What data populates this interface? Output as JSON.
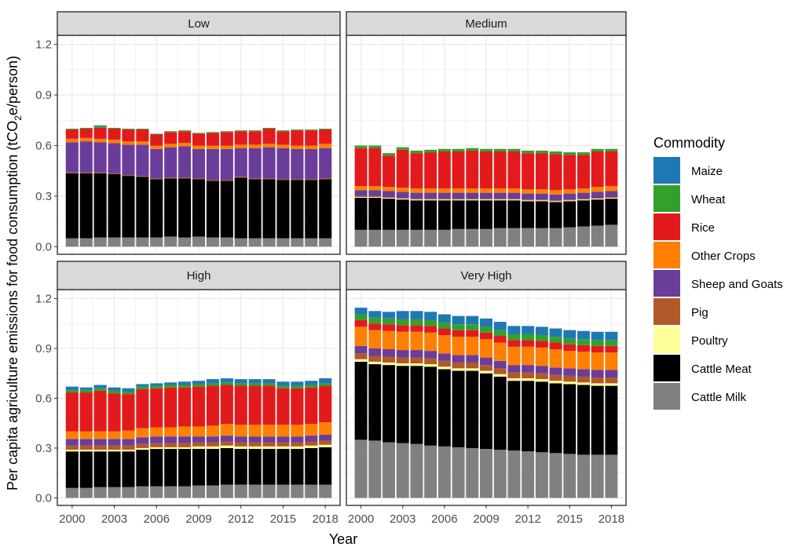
{
  "chart_data": {
    "type": "bar",
    "stacked": true,
    "facet_by": "income group",
    "xlabel": "Year",
    "ylabel": "Per capita agriculture emissions for food consumption (tCO",
    "ylabel_sub": "2",
    "ylabel_suffix": "e/person)",
    "ylim": [
      0,
      1.2
    ],
    "yticks": [
      "0.0",
      "0.3",
      "0.6",
      "0.9",
      "1.2"
    ],
    "ytick_values": [
      0,
      0.3,
      0.6,
      0.9,
      1.2
    ],
    "xticks": [
      "2000",
      "2003",
      "2006",
      "2009",
      "2012",
      "2015",
      "2018"
    ],
    "years": [
      2000,
      2001,
      2002,
      2003,
      2004,
      2005,
      2006,
      2007,
      2008,
      2009,
      2010,
      2011,
      2012,
      2013,
      2014,
      2015,
      2016,
      2017,
      2018
    ],
    "grid": true,
    "legend": {
      "title": "Commodity",
      "placement": "right",
      "items": [
        {
          "name": "Maize",
          "color": "#1f78b4"
        },
        {
          "name": "Wheat",
          "color": "#33a02c"
        },
        {
          "name": "Rice",
          "color": "#e31a1c"
        },
        {
          "name": "Other Crops",
          "color": "#ff7f00"
        },
        {
          "name": "Sheep and Goats",
          "color": "#6a3d9a"
        },
        {
          "name": "Pig",
          "color": "#b15928"
        },
        {
          "name": "Poultry",
          "color": "#ffff99"
        },
        {
          "name": "Cattle Meat",
          "color": "#000000"
        },
        {
          "name": "Cattle Milk",
          "color": "#808080"
        }
      ]
    },
    "stack_order": [
      "Cattle Milk",
      "Cattle Meat",
      "Poultry",
      "Pig",
      "Sheep and Goats",
      "Other Crops",
      "Rice",
      "Wheat",
      "Maize"
    ],
    "panels": [
      {
        "name": "Low",
        "series": [
          {
            "name": "Cattle Milk",
            "values": [
              0.05,
              0.05,
              0.055,
              0.055,
              0.055,
              0.055,
              0.055,
              0.06,
              0.055,
              0.06,
              0.055,
              0.055,
              0.05,
              0.05,
              0.05,
              0.05,
              0.05,
              0.05,
              0.05
            ]
          },
          {
            "name": "Cattle Meat",
            "values": [
              0.385,
              0.385,
              0.38,
              0.375,
              0.365,
              0.36,
              0.345,
              0.345,
              0.35,
              0.34,
              0.335,
              0.335,
              0.36,
              0.35,
              0.35,
              0.345,
              0.345,
              0.345,
              0.35
            ]
          },
          {
            "name": "Poultry",
            "values": [
              0,
              0,
              0,
              0,
              0,
              0,
              0,
              0,
              0,
              0,
              0,
              0,
              0,
              0,
              0,
              0,
              0,
              0,
              0
            ]
          },
          {
            "name": "Pig",
            "values": [
              0.005,
              0.005,
              0.005,
              0.005,
              0.005,
              0.005,
              0.005,
              0.005,
              0.005,
              0.005,
              0.005,
              0.005,
              0.005,
              0.005,
              0.005,
              0.005,
              0.005,
              0.005,
              0.005
            ]
          },
          {
            "name": "Sheep and Goats",
            "values": [
              0.18,
              0.185,
              0.18,
              0.18,
              0.18,
              0.185,
              0.175,
              0.18,
              0.185,
              0.175,
              0.185,
              0.185,
              0.17,
              0.18,
              0.185,
              0.185,
              0.18,
              0.18,
              0.18
            ]
          },
          {
            "name": "Other Crops",
            "values": [
              0.02,
              0.02,
              0.02,
              0.02,
              0.02,
              0.02,
              0.02,
              0.02,
              0.02,
              0.02,
              0.02,
              0.02,
              0.02,
              0.02,
              0.02,
              0.02,
              0.02,
              0.02,
              0.025
            ]
          },
          {
            "name": "Rice",
            "values": [
              0.055,
              0.055,
              0.065,
              0.065,
              0.07,
              0.07,
              0.065,
              0.07,
              0.07,
              0.07,
              0.075,
              0.08,
              0.08,
              0.08,
              0.09,
              0.08,
              0.09,
              0.09,
              0.085
            ]
          },
          {
            "name": "Wheat",
            "values": [
              0.005,
              0.005,
              0.01,
              0.005,
              0.005,
              0.005,
              0.005,
              0.005,
              0.005,
              0.005,
              0.005,
              0.005,
              0.005,
              0.005,
              0.005,
              0.005,
              0.005,
              0.005,
              0.005
            ]
          },
          {
            "name": "Maize",
            "values": [
              0,
              0,
              0.005,
              0,
              0,
              0,
              0,
              0,
              0,
              0,
              0,
              0,
              0,
              0,
              0,
              0,
              0,
              0,
              0
            ]
          }
        ]
      },
      {
        "name": "Medium",
        "series": [
          {
            "name": "Cattle Milk",
            "values": [
              0.1,
              0.1,
              0.1,
              0.1,
              0.1,
              0.1,
              0.1,
              0.105,
              0.105,
              0.105,
              0.11,
              0.11,
              0.11,
              0.11,
              0.11,
              0.115,
              0.12,
              0.125,
              0.13
            ]
          },
          {
            "name": "Cattle Meat",
            "values": [
              0.19,
              0.19,
              0.185,
              0.18,
              0.175,
              0.175,
              0.175,
              0.17,
              0.17,
              0.17,
              0.165,
              0.165,
              0.16,
              0.16,
              0.155,
              0.155,
              0.155,
              0.155,
              0.155
            ]
          },
          {
            "name": "Poultry",
            "values": [
              0.005,
              0.005,
              0.005,
              0.005,
              0.005,
              0.005,
              0.005,
              0.005,
              0.005,
              0.005,
              0.005,
              0.005,
              0.005,
              0.005,
              0.005,
              0.005,
              0.005,
              0.005,
              0.005
            ]
          },
          {
            "name": "Pig",
            "values": [
              0.005,
              0.005,
              0.005,
              0.005,
              0.005,
              0.005,
              0.005,
              0.005,
              0.005,
              0.005,
              0.005,
              0.005,
              0.005,
              0.005,
              0.005,
              0.005,
              0.005,
              0.005,
              0.005
            ]
          },
          {
            "name": "Sheep and Goats",
            "values": [
              0.035,
              0.035,
              0.035,
              0.035,
              0.035,
              0.035,
              0.035,
              0.035,
              0.035,
              0.035,
              0.035,
              0.035,
              0.035,
              0.035,
              0.035,
              0.035,
              0.035,
              0.035,
              0.035
            ]
          },
          {
            "name": "Other Crops",
            "values": [
              0.025,
              0.025,
              0.025,
              0.025,
              0.025,
              0.025,
              0.025,
              0.025,
              0.025,
              0.025,
              0.025,
              0.025,
              0.025,
              0.025,
              0.025,
              0.025,
              0.025,
              0.03,
              0.03
            ]
          },
          {
            "name": "Rice",
            "values": [
              0.225,
              0.225,
              0.185,
              0.225,
              0.21,
              0.215,
              0.22,
              0.22,
              0.225,
              0.22,
              0.22,
              0.22,
              0.215,
              0.215,
              0.215,
              0.205,
              0.2,
              0.21,
              0.205
            ]
          },
          {
            "name": "Wheat",
            "values": [
              0.015,
              0.015,
              0.015,
              0.015,
              0.015,
              0.015,
              0.015,
              0.015,
              0.015,
              0.015,
              0.015,
              0.015,
              0.015,
              0.015,
              0.015,
              0.015,
              0.015,
              0.015,
              0.015
            ]
          },
          {
            "name": "Maize",
            "values": [
              0,
              0,
              0,
              0,
              0,
              0,
              0,
              0,
              0,
              0,
              0,
              0,
              0,
              0,
              0,
              0,
              0,
              0,
              0
            ]
          }
        ]
      },
      {
        "name": "High",
        "series": [
          {
            "name": "Cattle Milk",
            "values": [
              0.06,
              0.06,
              0.065,
              0.065,
              0.065,
              0.07,
              0.07,
              0.07,
              0.07,
              0.075,
              0.075,
              0.08,
              0.08,
              0.08,
              0.08,
              0.08,
              0.08,
              0.08,
              0.08
            ]
          },
          {
            "name": "Cattle Meat",
            "values": [
              0.22,
              0.22,
              0.215,
              0.215,
              0.215,
              0.22,
              0.225,
              0.225,
              0.225,
              0.22,
              0.22,
              0.22,
              0.215,
              0.215,
              0.215,
              0.215,
              0.215,
              0.22,
              0.225
            ]
          },
          {
            "name": "Poultry",
            "values": [
              0.01,
              0.01,
              0.01,
              0.01,
              0.01,
              0.01,
              0.01,
              0.01,
              0.01,
              0.015,
              0.015,
              0.015,
              0.015,
              0.015,
              0.015,
              0.015,
              0.015,
              0.015,
              0.015
            ]
          },
          {
            "name": "Pig",
            "values": [
              0.025,
              0.025,
              0.025,
              0.025,
              0.025,
              0.025,
              0.025,
              0.025,
              0.025,
              0.025,
              0.025,
              0.025,
              0.025,
              0.025,
              0.025,
              0.025,
              0.025,
              0.025,
              0.025
            ]
          },
          {
            "name": "Sheep and Goats",
            "values": [
              0.04,
              0.04,
              0.04,
              0.04,
              0.04,
              0.04,
              0.04,
              0.04,
              0.04,
              0.035,
              0.035,
              0.035,
              0.035,
              0.035,
              0.035,
              0.035,
              0.035,
              0.035,
              0.035
            ]
          },
          {
            "name": "Other Crops",
            "values": [
              0.045,
              0.045,
              0.045,
              0.045,
              0.05,
              0.055,
              0.055,
              0.055,
              0.06,
              0.06,
              0.065,
              0.07,
              0.07,
              0.07,
              0.07,
              0.07,
              0.07,
              0.07,
              0.075
            ]
          },
          {
            "name": "Rice",
            "values": [
              0.235,
              0.235,
              0.245,
              0.23,
              0.22,
              0.235,
              0.235,
              0.24,
              0.235,
              0.24,
              0.24,
              0.235,
              0.235,
              0.235,
              0.235,
              0.22,
              0.22,
              0.22,
              0.22
            ]
          },
          {
            "name": "Wheat",
            "values": [
              0.015,
              0.015,
              0.015,
              0.015,
              0.015,
              0.015,
              0.015,
              0.015,
              0.015,
              0.015,
              0.015,
              0.015,
              0.015,
              0.015,
              0.015,
              0.015,
              0.015,
              0.015,
              0.015
            ]
          },
          {
            "name": "Maize",
            "values": [
              0.02,
              0.015,
              0.02,
              0.02,
              0.02,
              0.015,
              0.015,
              0.015,
              0.02,
              0.02,
              0.025,
              0.025,
              0.025,
              0.025,
              0.025,
              0.025,
              0.025,
              0.025,
              0.03
            ]
          }
        ]
      },
      {
        "name": "Very High",
        "series": [
          {
            "name": "Cattle Milk",
            "values": [
              0.35,
              0.345,
              0.335,
              0.33,
              0.325,
              0.315,
              0.31,
              0.305,
              0.3,
              0.295,
              0.29,
              0.285,
              0.28,
              0.275,
              0.27,
              0.265,
              0.26,
              0.26,
              0.26
            ]
          },
          {
            "name": "Cattle Meat",
            "values": [
              0.47,
              0.46,
              0.465,
              0.465,
              0.47,
              0.475,
              0.465,
              0.46,
              0.465,
              0.455,
              0.44,
              0.42,
              0.425,
              0.425,
              0.42,
              0.42,
              0.42,
              0.415,
              0.415
            ]
          },
          {
            "name": "Poultry",
            "values": [
              0.015,
              0.015,
              0.015,
              0.015,
              0.015,
              0.015,
              0.015,
              0.015,
              0.015,
              0.015,
              0.015,
              0.015,
              0.015,
              0.015,
              0.015,
              0.015,
              0.015,
              0.015,
              0.015
            ]
          },
          {
            "name": "Pig",
            "values": [
              0.035,
              0.035,
              0.035,
              0.035,
              0.035,
              0.035,
              0.035,
              0.035,
              0.035,
              0.035,
              0.035,
              0.035,
              0.035,
              0.035,
              0.035,
              0.035,
              0.035,
              0.035,
              0.035
            ]
          },
          {
            "name": "Sheep and Goats",
            "values": [
              0.045,
              0.045,
              0.045,
              0.045,
              0.045,
              0.045,
              0.045,
              0.045,
              0.045,
              0.045,
              0.045,
              0.045,
              0.045,
              0.045,
              0.045,
              0.045,
              0.045,
              0.045,
              0.045
            ]
          },
          {
            "name": "Other Crops",
            "values": [
              0.115,
              0.11,
              0.11,
              0.11,
              0.11,
              0.11,
              0.11,
              0.11,
              0.11,
              0.11,
              0.11,
              0.11,
              0.11,
              0.11,
              0.11,
              0.105,
              0.105,
              0.105,
              0.105
            ]
          },
          {
            "name": "Rice",
            "values": [
              0.04,
              0.04,
              0.04,
              0.04,
              0.04,
              0.04,
              0.04,
              0.04,
              0.04,
              0.04,
              0.04,
              0.04,
              0.04,
              0.04,
              0.04,
              0.04,
              0.04,
              0.04,
              0.04
            ]
          },
          {
            "name": "Wheat",
            "values": [
              0.035,
              0.035,
              0.035,
              0.035,
              0.035,
              0.035,
              0.035,
              0.035,
              0.035,
              0.035,
              0.035,
              0.035,
              0.035,
              0.035,
              0.035,
              0.035,
              0.035,
              0.035,
              0.035
            ]
          },
          {
            "name": "Maize",
            "values": [
              0.04,
              0.04,
              0.04,
              0.05,
              0.05,
              0.05,
              0.05,
              0.05,
              0.05,
              0.05,
              0.05,
              0.05,
              0.05,
              0.05,
              0.05,
              0.05,
              0.05,
              0.05,
              0.05
            ]
          }
        ]
      }
    ]
  }
}
